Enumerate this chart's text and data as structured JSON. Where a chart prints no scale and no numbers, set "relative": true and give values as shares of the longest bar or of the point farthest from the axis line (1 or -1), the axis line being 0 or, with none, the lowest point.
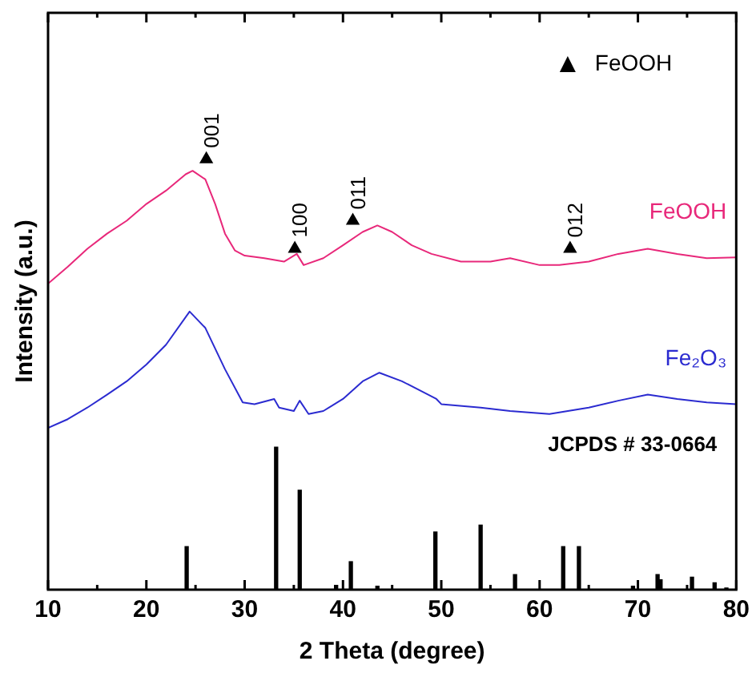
{
  "chart_data": {
    "type": "line",
    "relative": true,
    "xlabel": "2 Theta (degree)",
    "ylabel": "Intensity (a.u.)",
    "xlim": [
      10,
      80
    ],
    "xticks": [
      10,
      {
        "value": 15,
        "label": null
      },
      20,
      {
        "value": 25,
        "label": null
      },
      30,
      {
        "value": 35,
        "label": null
      },
      40,
      {
        "value": 45,
        "label": null
      },
      50,
      {
        "value": 55,
        "label": null
      },
      60,
      {
        "value": 65,
        "label": null
      },
      70,
      {
        "value": 75,
        "label": null
      },
      80
    ],
    "legend": "top right",
    "marker": "none",
    "annotations": [
      "JCPDS # 33-0664",
      {
        "text": "001",
        "x": 26.1,
        "y": 1
      },
      {
        "text": "100",
        "x": 35.1,
        "y": 0.792
      },
      {
        "text": "011",
        "x": 41.0,
        "y": 0.857
      },
      {
        "text": "012",
        "x": 63.1,
        "y": 0.792
      }
    ],
    "series": [
      {
        "name": "FeOOH",
        "color": "#e8287a",
        "x": [
          10,
          12,
          14,
          16,
          18,
          20,
          22,
          24,
          24.7,
          26,
          27,
          28,
          29,
          30,
          32,
          34,
          35.3,
          36,
          38,
          40,
          42,
          43.5,
          45,
          47,
          49,
          52,
          55,
          57,
          60,
          62,
          65,
          68,
          71,
          74,
          77,
          80
        ],
        "values": [
          0.711,
          0.75,
          0.792,
          0.827,
          0.857,
          0.896,
          0.927,
          0.965,
          0.973,
          0.953,
          0.896,
          0.827,
          0.788,
          0.776,
          0.77,
          0.762,
          0.78,
          0.754,
          0.77,
          0.8,
          0.831,
          0.846,
          0.831,
          0.8,
          0.78,
          0.762,
          0.762,
          0.77,
          0.754,
          0.754,
          0.762,
          0.78,
          0.792,
          0.78,
          0.77,
          0.772
        ]
      },
      {
        "name": "Fe₂O₃",
        "color": "#2b2bd0",
        "x": [
          10,
          12,
          14,
          16,
          18,
          20,
          22,
          24.4,
          26,
          28,
          29.8,
          31,
          33,
          33.5,
          35,
          35.6,
          36.5,
          38,
          40,
          42,
          43.7,
          46,
          48,
          49.5,
          50,
          54,
          57,
          61,
          65,
          68,
          71,
          74,
          77,
          80
        ],
        "values": [
          0.376,
          0.396,
          0.423,
          0.453,
          0.484,
          0.523,
          0.569,
          0.646,
          0.608,
          0.512,
          0.435,
          0.431,
          0.443,
          0.423,
          0.415,
          0.439,
          0.408,
          0.415,
          0.443,
          0.484,
          0.504,
          0.484,
          0.461,
          0.443,
          0.431,
          0.423,
          0.415,
          0.408,
          0.423,
          0.439,
          0.453,
          0.443,
          0.435,
          0.431
        ]
      },
      {
        "type": "bar",
        "color": "#000000",
        "x": [
          24.1,
          33.2,
          35.6,
          39.3,
          40.8,
          43.5,
          49.4,
          54.0,
          57.5,
          62.4,
          64.0,
          69.5,
          72.0,
          72.3,
          75.5,
          77.8,
          79.0
        ],
        "values": [
          0.1,
          0.331,
          0.231,
          0.01,
          0.065,
          0.008,
          0.134,
          0.15,
          0.035,
          0.1,
          0.1,
          0.008,
          0.035,
          0.023,
          0.029,
          0.016,
          0.004
        ]
      },
      {
        "name": "FeOOH",
        "type": "scatter",
        "marker": "triangle",
        "color": "#000000",
        "x": [
          26.1,
          35.1,
          41.0,
          63.1
        ],
        "values": [
          1,
          0.792,
          0.857,
          0.792
        ]
      }
    ]
  }
}
